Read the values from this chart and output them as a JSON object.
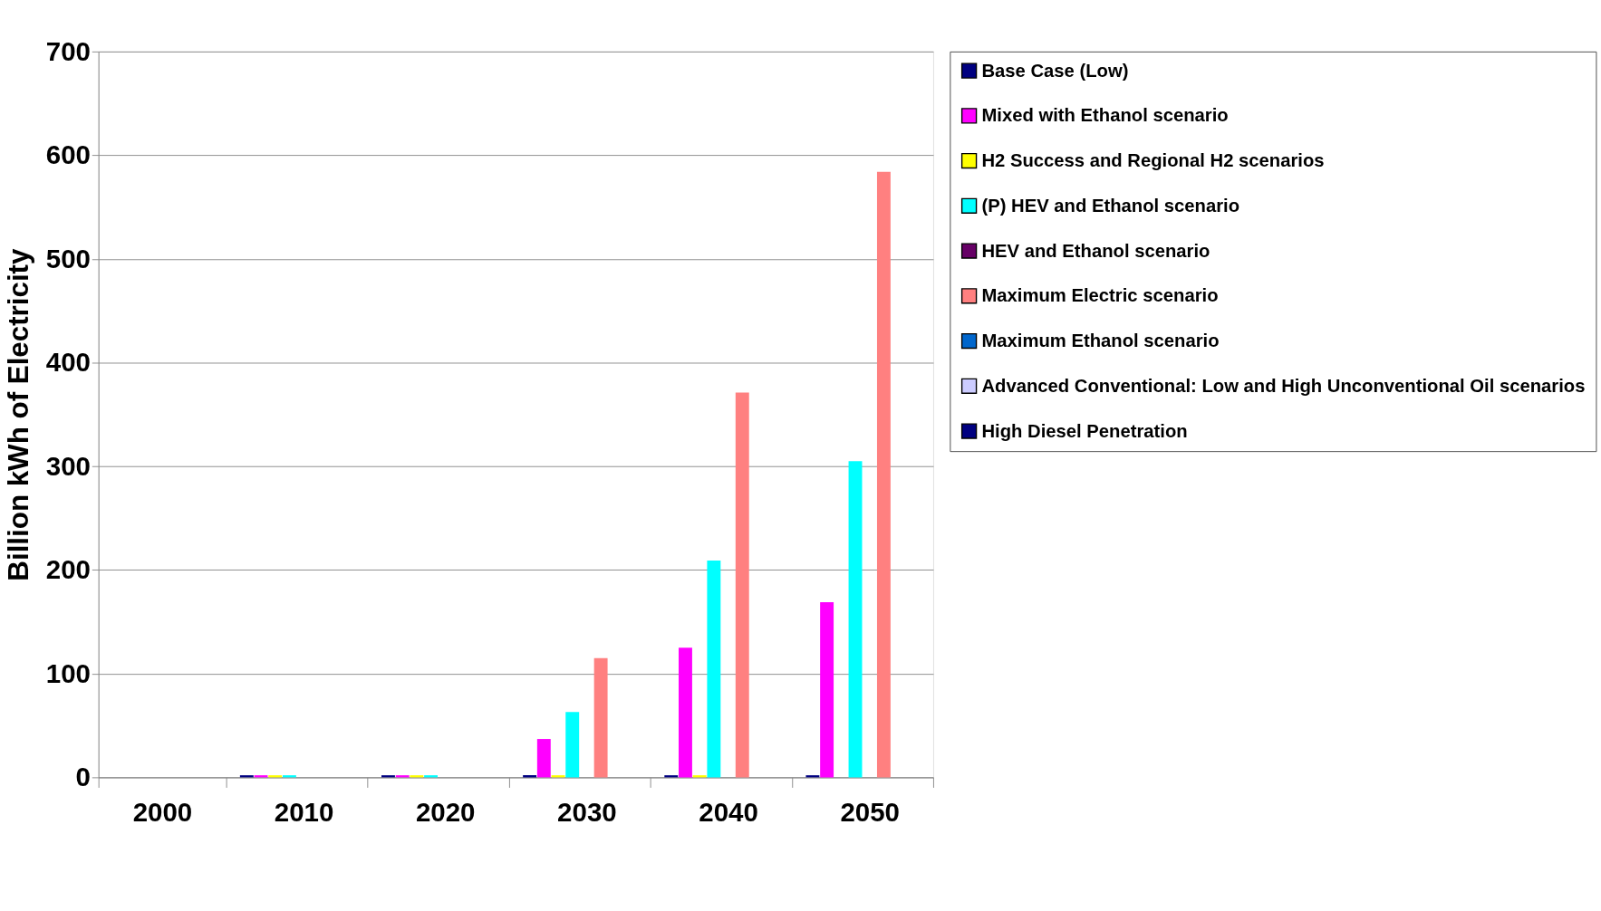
{
  "chart_data": {
    "type": "bar",
    "ylabel": "Billion kWh of Electricity",
    "categories": [
      "2000",
      "2010",
      "2020",
      "2030",
      "2040",
      "2050"
    ],
    "series": [
      {
        "name": "Base Case (Low)",
        "color": "#000080",
        "values": [
          0,
          2,
          2,
          2,
          2,
          2
        ]
      },
      {
        "name": "Mixed with Ethanol scenario",
        "color": "#ff00ff",
        "values": [
          0,
          2,
          2,
          37,
          125,
          169
        ]
      },
      {
        "name": "H2 Success and Regional H2 scenarios",
        "color": "#ffff00",
        "values": [
          0,
          2,
          2,
          2,
          2,
          0
        ]
      },
      {
        "name": "(P) HEV and Ethanol scenario",
        "color": "#00ffff",
        "values": [
          0,
          2,
          2,
          63,
          209,
          305
        ]
      },
      {
        "name": "HEV and Ethanol scenario",
        "color": "#660066",
        "values": [
          0,
          0,
          0,
          0,
          0,
          0
        ]
      },
      {
        "name": "Maximum Electric scenario",
        "color": "#ff8080",
        "values": [
          0,
          0,
          0,
          115,
          371,
          584
        ]
      },
      {
        "name": "Maximum Ethanol scenario",
        "color": "#0066cc",
        "values": [
          0,
          0,
          0,
          0,
          0,
          0
        ]
      },
      {
        "name": "Advanced Conventional: Low and High Unconventional Oil scenarios",
        "color": "#ccccff",
        "values": [
          0,
          0,
          0,
          0,
          0,
          0
        ]
      },
      {
        "name": "High Diesel Penetration",
        "color": "#000080",
        "values": [
          0,
          0,
          0,
          0,
          0,
          0
        ]
      }
    ],
    "ylim": [
      0,
      700
    ],
    "yticks": [
      0,
      100,
      200,
      300,
      400,
      500,
      600,
      700
    ],
    "grid": "y",
    "legend": "right"
  }
}
